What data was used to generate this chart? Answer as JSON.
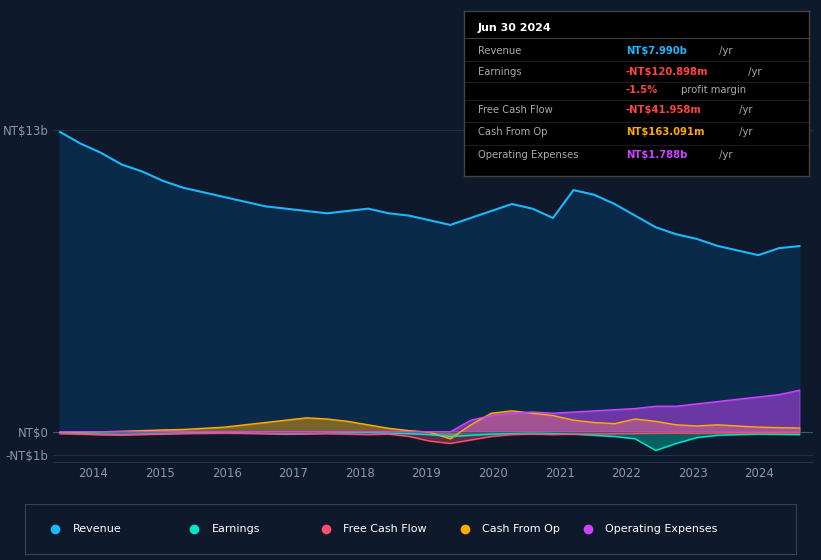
{
  "background_color": "#0e1a2b",
  "plot_bg_color": "#0e1a2b",
  "grid_color": "#1e3550",
  "text_color": "#8899aa",
  "colors": {
    "revenue": "#1ab8ff",
    "earnings": "#00e5cc",
    "free_cash_flow": "#ff4d6d",
    "cash_from_op": "#ffaa00",
    "operating_expenses": "#cc44ff"
  },
  "revenue": [
    12.9,
    12.4,
    12.0,
    11.5,
    11.2,
    10.8,
    10.5,
    10.3,
    10.1,
    9.9,
    9.7,
    9.6,
    9.5,
    9.4,
    9.5,
    9.6,
    9.4,
    9.3,
    9.1,
    8.9,
    9.2,
    9.5,
    9.8,
    9.6,
    9.2,
    10.4,
    10.2,
    9.8,
    9.3,
    8.8,
    8.5,
    8.3,
    8.0,
    7.8,
    7.6,
    7.9,
    7.99
  ],
  "earnings": [
    -0.05,
    -0.08,
    -0.1,
    -0.12,
    -0.1,
    -0.08,
    -0.05,
    -0.03,
    -0.02,
    -0.05,
    -0.07,
    -0.09,
    -0.08,
    -0.06,
    -0.04,
    -0.03,
    -0.06,
    -0.08,
    -0.12,
    -0.2,
    -0.15,
    -0.1,
    -0.08,
    -0.06,
    -0.08,
    -0.1,
    -0.15,
    -0.2,
    -0.3,
    -0.8,
    -0.5,
    -0.25,
    -0.15,
    -0.12,
    -0.1,
    -0.11,
    -0.12
  ],
  "free_cash_flow": [
    -0.08,
    -0.1,
    -0.13,
    -0.14,
    -0.12,
    -0.1,
    -0.08,
    -0.07,
    -0.06,
    -0.07,
    -0.08,
    -0.1,
    -0.09,
    -0.08,
    -0.1,
    -0.12,
    -0.1,
    -0.2,
    -0.4,
    -0.5,
    -0.35,
    -0.2,
    -0.12,
    -0.1,
    -0.12,
    -0.1,
    -0.09,
    -0.08,
    -0.07,
    -0.06,
    -0.05,
    -0.06,
    -0.05,
    -0.04,
    -0.04,
    -0.04,
    -0.04
  ],
  "cash_from_op": [
    -0.03,
    -0.02,
    0.0,
    0.02,
    0.05,
    0.08,
    0.1,
    0.15,
    0.2,
    0.3,
    0.4,
    0.5,
    0.6,
    0.55,
    0.45,
    0.3,
    0.15,
    0.05,
    -0.02,
    -0.3,
    0.3,
    0.8,
    0.9,
    0.8,
    0.7,
    0.5,
    0.4,
    0.35,
    0.55,
    0.45,
    0.3,
    0.25,
    0.3,
    0.25,
    0.2,
    0.18,
    0.16
  ],
  "operating_expenses": [
    0.0,
    0.0,
    0.0,
    0.0,
    0.0,
    0.0,
    0.0,
    0.0,
    0.0,
    0.0,
    0.0,
    0.0,
    0.0,
    0.0,
    0.0,
    0.0,
    0.0,
    0.0,
    0.0,
    0.0,
    0.5,
    0.7,
    0.8,
    0.85,
    0.8,
    0.85,
    0.9,
    0.95,
    1.0,
    1.1,
    1.1,
    1.2,
    1.3,
    1.4,
    1.5,
    1.6,
    1.788
  ],
  "xlim_start": 2013.4,
  "xlim_end": 2024.8,
  "ylim_min": -1.3,
  "ylim_max": 14.0,
  "x_start_year": 2013.5,
  "x_end_year": 2024.6,
  "xtick_years": [
    2014,
    2015,
    2016,
    2017,
    2018,
    2019,
    2020,
    2021,
    2022,
    2023,
    2024
  ]
}
